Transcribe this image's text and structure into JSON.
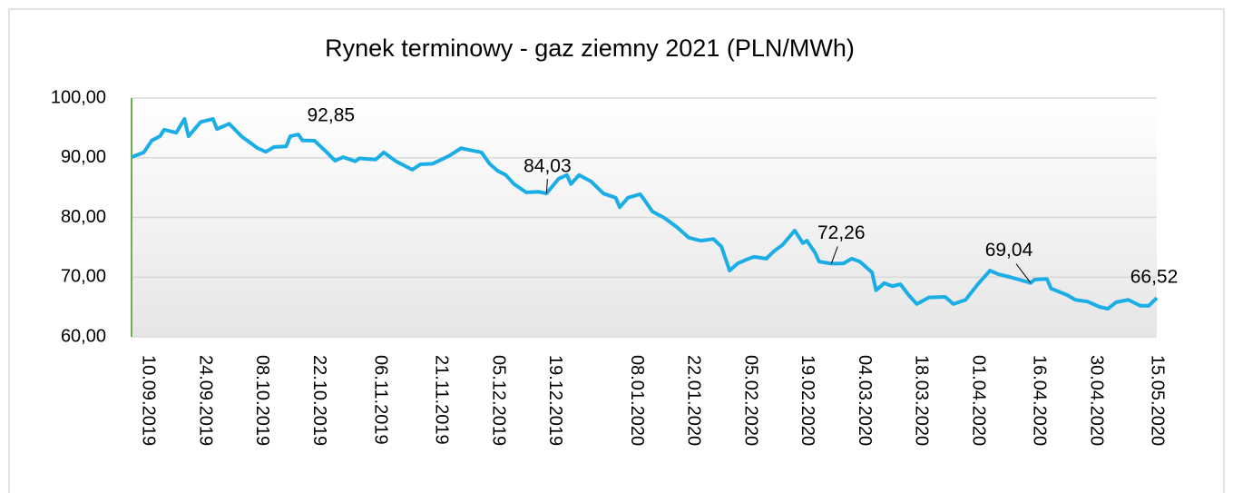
{
  "chart_data": {
    "type": "line",
    "title": "Rynek terminowy - gaz ziemny 2021 (PLN/MWh)",
    "x": [
      "06.09.2019",
      "09.09.2019",
      "11.09.2019",
      "13.09.2019",
      "14.09.2019",
      "17.09.2019",
      "19.09.2019",
      "20.09.2019",
      "23.09.2019",
      "26.09.2019",
      "27.09.2019",
      "30.09.2019",
      "03.10.2019",
      "07.10.2019",
      "09.10.2019",
      "11.10.2019",
      "14.10.2019",
      "15.10.2019",
      "17.10.2019",
      "18.10.2019",
      "21.10.2019",
      "24.10.2019",
      "26.10.2019",
      "28.10.2019",
      "31.10.2019",
      "01.11.2019",
      "05.11.2019",
      "07.11.2019",
      "10.11.2019",
      "14.11.2019",
      "16.11.2019",
      "19.11.2019",
      "23.11.2019",
      "26.11.2019",
      "28.11.2019",
      "01.12.2019",
      "03.12.2019",
      "05.12.2019",
      "07.12.2019",
      "09.12.2019",
      "12.12.2019",
      "15.12.2019",
      "17.12.2019",
      "20.12.2019",
      "22.12.2019",
      "23.12.2019",
      "25.12.2019",
      "28.12.2019",
      "31.12.2019",
      "03.01.2020",
      "04.01.2020",
      "06.01.2020",
      "09.01.2020",
      "10.01.2020",
      "12.01.2020",
      "15.01.2020",
      "18.01.2020",
      "21.01.2020",
      "24.01.2020",
      "27.01.2020",
      "29.01.2020",
      "31.01.2020",
      "02.02.2020",
      "04.02.2020",
      "06.02.2020",
      "09.02.2020",
      "11.02.2020",
      "13.02.2020",
      "16.02.2020",
      "18.02.2020",
      "19.02.2020",
      "21.02.2020",
      "22.02.2020",
      "25.02.2020",
      "28.02.2020",
      "01.03.2020",
      "03.03.2020",
      "06.03.2020",
      "07.03.2020",
      "09.03.2020",
      "11.03.2020",
      "13.03.2020",
      "15.03.2020",
      "17.03.2020",
      "20.03.2020",
      "24.03.2020",
      "26.03.2020",
      "29.03.2020",
      "01.04.2020",
      "04.04.2020",
      "06.04.2020",
      "09.04.2020",
      "14.04.2020",
      "15.04.2020",
      "18.04.2020",
      "19.04.2020",
      "23.04.2020",
      "25.04.2020",
      "28.04.2020",
      "01.05.2020",
      "03.05.2020",
      "05.05.2020",
      "08.05.2020",
      "11.05.2020",
      "13.05.2020",
      "15.05.2020"
    ],
    "series": [
      {
        "name": "gaz ziemny 2021",
        "color": "#1aade6",
        "values": [
          90.1,
          90.9,
          92.9,
          93.6,
          94.7,
          94.2,
          96.5,
          93.6,
          96,
          96.5,
          94.8,
          95.7,
          93.6,
          91.6,
          91,
          91.8,
          91.9,
          93.6,
          93.9,
          92.9,
          92.85,
          90.9,
          89.5,
          90.1,
          89.4,
          89.9,
          89.7,
          90.9,
          89.4,
          88,
          88.9,
          89,
          90.3,
          91.6,
          91.3,
          90.9,
          89,
          87.8,
          87.1,
          85.6,
          84.2,
          84.3,
          84.03,
          86.5,
          87.1,
          85.6,
          87.1,
          86,
          84,
          83.3,
          81.7,
          83.3,
          83.9,
          83,
          81,
          79.9,
          78.4,
          76.6,
          76.1,
          76.4,
          75.1,
          71.1,
          72.3,
          72.9,
          73.4,
          73.1,
          74.4,
          75.4,
          77.8,
          75.7,
          76.1,
          74.1,
          72.6,
          72.26,
          72.3,
          73.1,
          72.6,
          70.8,
          67.8,
          69,
          68.5,
          68.8,
          67,
          65.5,
          66.6,
          66.7,
          65.5,
          66.2,
          68.8,
          71.1,
          70.5,
          70,
          69.04,
          69.6,
          69.7,
          68.1,
          67,
          66.2,
          65.9,
          65,
          64.7,
          65.8,
          66.2,
          65.2,
          65.2,
          66.52
        ]
      }
    ],
    "xlim": [
      "06.09.2019",
      "15.05.2020"
    ],
    "xticks": [
      "10.09.2019",
      "24.09.2019",
      "08.10.2019",
      "22.10.2019",
      "06.11.2019",
      "21.11.2019",
      "05.12.2019",
      "19.12.2019",
      "08.01.2020",
      "22.01.2020",
      "05.02.2020",
      "19.02.2020",
      "04.03.2020",
      "18.03.2020",
      "01.04.2020",
      "16.04.2020",
      "30.04.2020",
      "15.05.2020"
    ],
    "ylim": [
      60,
      100
    ],
    "yticks": [
      {
        "value": 60,
        "label": "60,00"
      },
      {
        "value": 70,
        "label": "70,00"
      },
      {
        "value": 80,
        "label": "80,00"
      },
      {
        "value": 90,
        "label": "90,00"
      },
      {
        "value": 100,
        "label": "100,00"
      }
    ],
    "grid": true,
    "annotations": [
      {
        "x": "21.10.2019",
        "value": 92.85,
        "label": "92,85"
      },
      {
        "x": "17.12.2019",
        "value": 84.03,
        "label": "84,03"
      },
      {
        "x": "25.02.2020",
        "value": 72.26,
        "label": "72,26"
      },
      {
        "x": "14.04.2020",
        "value": 69.04,
        "label": "69,04"
      },
      {
        "x": "15.05.2020",
        "value": 66.52,
        "label": "66,52"
      }
    ]
  }
}
